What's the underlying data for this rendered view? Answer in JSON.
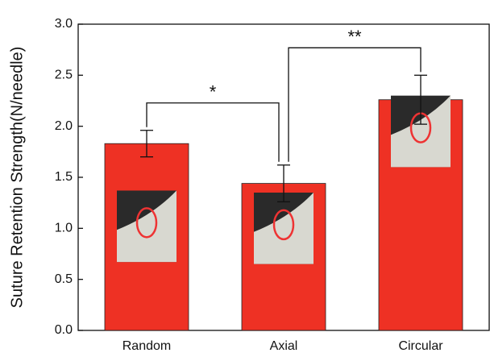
{
  "chart_data": {
    "type": "bar",
    "y_label": "Suture Retention Strength(N/needle)",
    "categories": [
      "Random",
      "Axial",
      "Circular"
    ],
    "values": [
      1.83,
      1.44,
      2.26
    ],
    "errors": [
      0.13,
      0.18,
      0.24
    ],
    "color": "#ee3124",
    "ylim": [
      0,
      3
    ],
    "yticks": [
      {
        "value": 0,
        "label": "0.0"
      },
      {
        "value": 0.5,
        "label": "0.5"
      },
      {
        "value": 1,
        "label": "1.0"
      },
      {
        "value": 1.5,
        "label": "1.5"
      },
      {
        "value": 2,
        "label": "2.0"
      },
      {
        "value": 2.5,
        "label": "2.5"
      },
      {
        "value": 3,
        "label": "3.0"
      }
    ],
    "annotations": [
      {
        "text": "*",
        "from": 0,
        "to": 1
      },
      {
        "text": "**",
        "from": 1,
        "to": 2
      }
    ]
  }
}
